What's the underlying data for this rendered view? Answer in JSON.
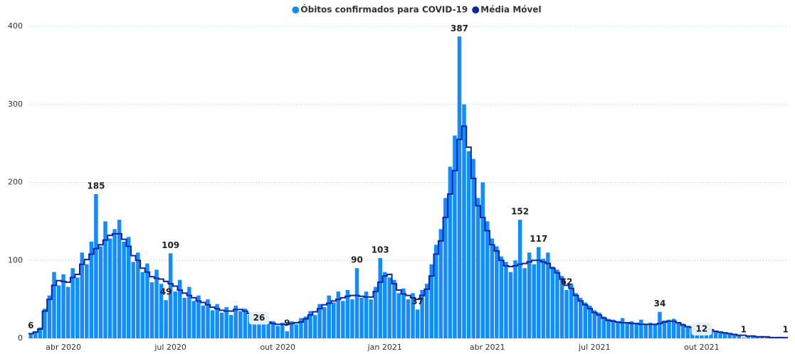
{
  "chart_data": {
    "type": "bar",
    "grid": true,
    "ylim": [
      0,
      400
    ],
    "yticks": [
      0,
      100,
      200,
      300,
      400
    ],
    "categories": [
      null,
      null,
      null,
      null,
      null,
      null,
      null,
      "abr 2020",
      null,
      null,
      null,
      null,
      null,
      null,
      null,
      null,
      null,
      null,
      null,
      null,
      null,
      null,
      null,
      null,
      null,
      null,
      null,
      null,
      null,
      null,
      "jul 2020",
      null,
      null,
      null,
      null,
      null,
      null,
      null,
      null,
      null,
      null,
      null,
      null,
      null,
      null,
      null,
      null,
      null,
      null,
      null,
      null,
      null,
      null,
      "out 2020",
      null,
      null,
      null,
      null,
      null,
      null,
      null,
      null,
      null,
      null,
      null,
      null,
      null,
      null,
      null,
      null,
      null,
      null,
      null,
      null,
      null,
      null,
      "jan 2021",
      null,
      null,
      null,
      null,
      null,
      null,
      null,
      null,
      null,
      null,
      null,
      null,
      null,
      null,
      null,
      null,
      null,
      null,
      null,
      null,
      null,
      "abr 2021",
      null,
      null,
      null,
      null,
      null,
      null,
      null,
      null,
      null,
      null,
      null,
      null,
      null,
      null,
      null,
      null,
      null,
      null,
      null,
      null,
      null,
      null,
      "jul 2021",
      null,
      null,
      null,
      null,
      null,
      null,
      null,
      null,
      null,
      null,
      null,
      null,
      null,
      null,
      null,
      null,
      null,
      null,
      null,
      null,
      null,
      null,
      "out 2021",
      null,
      null,
      null,
      null,
      null,
      null,
      null,
      null,
      null,
      null,
      null,
      null,
      null,
      null,
      null,
      null,
      null,
      null
    ],
    "series": [
      {
        "name": "Óbitos confirmados para COVID-19",
        "type": "bar",
        "color": "#118DFF",
        "values": [
          6,
          9,
          14,
          38,
          55,
          85,
          68,
          82,
          66,
          90,
          78,
          110,
          95,
          124,
          185,
          118,
          150,
          128,
          140,
          152,
          124,
          130,
          98,
          110,
          85,
          96,
          72,
          88,
          70,
          49,
          109,
          60,
          75,
          52,
          66,
          48,
          55,
          42,
          50,
          36,
          44,
          33,
          40,
          30,
          42,
          35,
          38,
          30,
          33,
          24,
          28,
          20,
          22,
          16,
          20,
          9,
          22,
          18,
          26,
          28,
          35,
          30,
          44,
          40,
          55,
          46,
          60,
          48,
          62,
          50,
          90,
          52,
          60,
          50,
          66,
          103,
          85,
          78,
          75,
          58,
          64,
          50,
          58,
          37,
          62,
          70,
          95,
          120,
          140,
          180,
          220,
          260,
          387,
          300,
          240,
          230,
          180,
          200,
          150,
          128,
          118,
          105,
          98,
          85,
          100,
          152,
          90,
          110,
          95,
          117,
          102,
          110,
          92,
          88,
          80,
          62,
          70,
          58,
          52,
          46,
          42,
          36,
          33,
          28,
          25,
          24,
          22,
          26,
          21,
          22,
          20,
          24,
          19,
          20,
          18,
          34,
          23,
          24,
          25,
          21,
          19,
          16,
          15,
          14,
          13,
          13,
          12,
          10,
          9,
          8,
          7,
          6,
          5,
          1,
          3,
          4,
          2,
          3,
          2,
          2,
          1,
          2,
          1
        ],
        "value_labels": [
          "6",
          null,
          null,
          null,
          null,
          null,
          null,
          null,
          null,
          null,
          null,
          null,
          null,
          null,
          "185",
          null,
          null,
          null,
          null,
          null,
          null,
          null,
          null,
          null,
          null,
          null,
          null,
          null,
          null,
          "49",
          "109",
          null,
          null,
          null,
          null,
          null,
          null,
          null,
          null,
          null,
          null,
          null,
          null,
          null,
          null,
          null,
          null,
          null,
          null,
          null,
          null,
          null,
          null,
          null,
          null,
          "9",
          null,
          null,
          null,
          null,
          null,
          null,
          null,
          null,
          null,
          null,
          null,
          null,
          null,
          null,
          "90",
          null,
          null,
          null,
          null,
          "103",
          null,
          null,
          null,
          null,
          null,
          null,
          null,
          "37",
          null,
          null,
          null,
          null,
          null,
          null,
          null,
          null,
          "387",
          null,
          null,
          null,
          null,
          null,
          null,
          null,
          null,
          null,
          null,
          null,
          null,
          "152",
          null,
          null,
          null,
          "117",
          null,
          null,
          null,
          null,
          null,
          "62",
          null,
          null,
          null,
          null,
          null,
          null,
          null,
          null,
          null,
          null,
          null,
          null,
          null,
          null,
          null,
          null,
          null,
          null,
          null,
          "34",
          null,
          null,
          null,
          null,
          null,
          null,
          null,
          null,
          null,
          null,
          null,
          null,
          null,
          null,
          null,
          null,
          null,
          "1",
          null,
          null,
          null,
          null,
          null,
          null,
          null,
          null,
          "1"
        ]
      },
      {
        "name": "Média Móvel",
        "type": "line",
        "color": "#12239E",
        "values": [
          6,
          8,
          12,
          35,
          50,
          68,
          74,
          73,
          72,
          78,
          82,
          95,
          101,
          108,
          115,
          120,
          126,
          132,
          134,
          134,
          127,
          118,
          106,
          100,
          90,
          85,
          79,
          77,
          76,
          73,
          70,
          67,
          62,
          58,
          55,
          52,
          48,
          46,
          43,
          40,
          38,
          36,
          35,
          35,
          37,
          37,
          35,
          32,
          28,
          26,
          24,
          21,
          19,
          18,
          18,
          18,
          19,
          20,
          21,
          25,
          30,
          34,
          38,
          43,
          45,
          48,
          50,
          52,
          54,
          55,
          55,
          54,
          53,
          53,
          60,
          72,
          80,
          82,
          70,
          62,
          57,
          55,
          52,
          50,
          55,
          63,
          80,
          108,
          125,
          155,
          185,
          215,
          255,
          272,
          245,
          205,
          170,
          155,
          138,
          120,
          112,
          100,
          93,
          92,
          93,
          95,
          96,
          98,
          100,
          100,
          98,
          96,
          90,
          84,
          76,
          68,
          64,
          55,
          48,
          43,
          38,
          33,
          30,
          26,
          23,
          22,
          21,
          20,
          20,
          19,
          19,
          18,
          18,
          18,
          18,
          19,
          21,
          22,
          22,
          20,
          17,
          15,
          14,
          13,
          12,
          12,
          11,
          9,
          8,
          7,
          6,
          5,
          4,
          4,
          3,
          3,
          2,
          2,
          2,
          1,
          1,
          1,
          1
        ],
        "value_labels": [
          null,
          null,
          null,
          null,
          null,
          null,
          null,
          null,
          null,
          null,
          null,
          null,
          null,
          null,
          null,
          null,
          null,
          null,
          null,
          null,
          null,
          null,
          null,
          null,
          null,
          null,
          null,
          null,
          null,
          null,
          null,
          null,
          null,
          null,
          null,
          null,
          null,
          null,
          null,
          null,
          null,
          null,
          null,
          null,
          null,
          null,
          null,
          null,
          null,
          "26",
          null,
          null,
          null,
          null,
          null,
          null,
          null,
          null,
          null,
          null,
          null,
          null,
          null,
          null,
          null,
          null,
          null,
          null,
          null,
          null,
          null,
          null,
          null,
          null,
          null,
          null,
          null,
          null,
          null,
          null,
          null,
          null,
          null,
          null,
          null,
          null,
          null,
          null,
          null,
          null,
          null,
          null,
          null,
          null,
          null,
          null,
          null,
          null,
          null,
          null,
          null,
          null,
          null,
          null,
          null,
          null,
          null,
          null,
          null,
          null,
          null,
          null,
          null,
          null,
          null,
          null,
          null,
          null,
          null,
          null,
          null,
          null,
          null,
          null,
          null,
          null,
          null,
          null,
          null,
          null,
          null,
          null,
          null,
          null,
          null,
          null,
          null,
          null,
          null,
          null,
          null,
          null,
          null,
          null,
          "12",
          null,
          null,
          null,
          null,
          null,
          null,
          null,
          null,
          null,
          null,
          null,
          null,
          null,
          null,
          null,
          null,
          null,
          null
        ]
      }
    ]
  }
}
